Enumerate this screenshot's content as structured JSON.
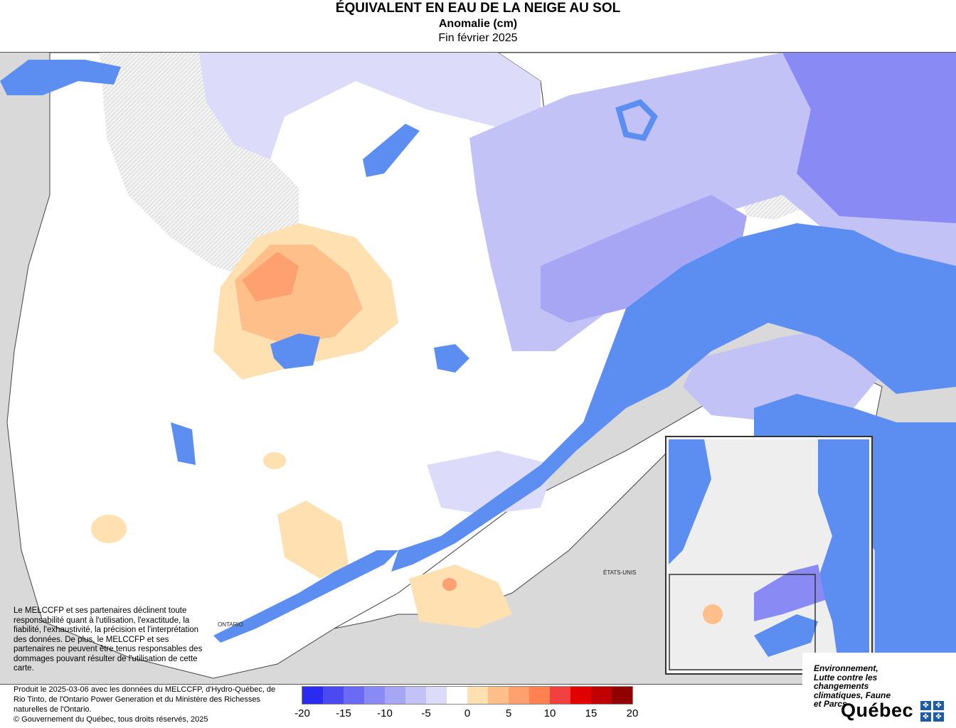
{
  "header": {
    "title": "ÉQUIVALENT EN EAU DE LA NEIGE AU SOL",
    "subtitle": "Anomalie (cm)",
    "date": "Fin février 2025"
  },
  "map": {
    "labels": {
      "ontario": "ONTARIO",
      "usa": "ÉTATS-UNIS"
    },
    "colors": {
      "water": "#5b8ef0",
      "land_outside": "#d9d9d9",
      "no_data": "#eeeeee"
    }
  },
  "disclaimer": "Le MELCCFP et ses partenaires déclinent toute responsabilité quant à l'utilisation, l'exactitude, la fiabilité, l'exhaustivité, la précision et l'interprétation des données. De plus, le MELCCFP et ses partenaires ne peuvent être tenus responsables des dommages pouvant résulter de l'utilisation de cette carte.",
  "credits": {
    "line1": "Produit le 2025-03-06 avec les données du MELCCFP, d'Hydro-Québec, de Rio Tinto, de l'Ontario Power Generation et du Ministère des Richesses naturelles de l'Ontario.",
    "line2": "© Gouvernement du Québec, tous droits réservés, 2025"
  },
  "legend": {
    "colors": [
      "#2a2af0",
      "#4a4af0",
      "#6a6af5",
      "#8a8af5",
      "#a6a6f5",
      "#c2c2f7",
      "#dcdcfa",
      "#ffffff",
      "#ffe0b0",
      "#ffbf8a",
      "#ffa070",
      "#ff8050",
      "#f04040",
      "#e00000",
      "#c00000",
      "#900000"
    ],
    "ticks": [
      "-20",
      "-15",
      "-10",
      "-5",
      "0",
      "5",
      "10",
      "15",
      "20"
    ]
  },
  "logo": {
    "ministry": "Environnement, Lutte contre les changements climatiques, Faune et Parcs",
    "name": "Québec"
  }
}
